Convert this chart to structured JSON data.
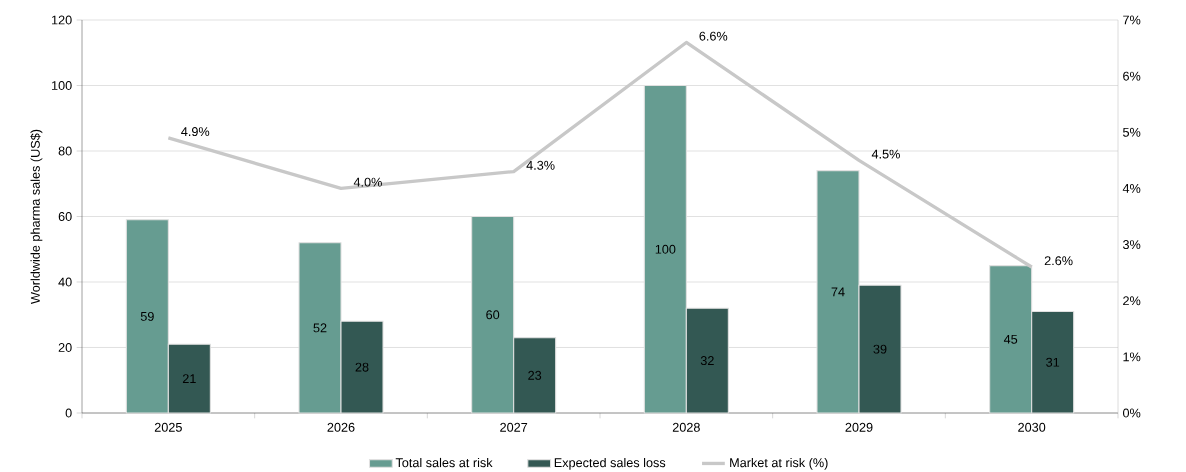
{
  "chart_data": {
    "type": "bar",
    "categories": [
      "2025",
      "2026",
      "2027",
      "2028",
      "2029",
      "2030"
    ],
    "ylabel": "Worldwide pharma sales (US$)",
    "ylim": [
      0,
      120
    ],
    "yticks": [
      0,
      20,
      40,
      60,
      80,
      100,
      120
    ],
    "y2lim": [
      0,
      7
    ],
    "y2ticks": [
      {
        "value": 0,
        "label": "0%"
      },
      {
        "value": 1,
        "label": "1%"
      },
      {
        "value": 2,
        "label": "2%"
      },
      {
        "value": 3,
        "label": "3%"
      },
      {
        "value": 4,
        "label": "4%"
      },
      {
        "value": 5,
        "label": "5%"
      },
      {
        "value": 6,
        "label": "6%"
      },
      {
        "value": 7,
        "label": "7%"
      }
    ],
    "grid": "y",
    "legend": "bottom",
    "series": [
      {
        "name": "Total sales at risk",
        "type": "bar",
        "color": "#669c91",
        "values": [
          59,
          52,
          60,
          100,
          74,
          45
        ],
        "value_labels": [
          "59",
          "52",
          "60",
          "100",
          "74",
          "45"
        ]
      },
      {
        "name": "Expected sales loss",
        "type": "bar",
        "color": "#335853",
        "values": [
          21,
          28,
          23,
          32,
          39,
          31
        ],
        "value_labels": [
          "21",
          "28",
          "23",
          "32",
          "39",
          "31"
        ]
      },
      {
        "name": "Market at risk (%)",
        "type": "line",
        "axis": "y2",
        "color": "#c8c8c8",
        "values": [
          4.9,
          4.0,
          4.3,
          6.6,
          4.5,
          2.6
        ],
        "value_labels": [
          "4.9%",
          "4.0%",
          "4.3%",
          "6.6%",
          "4.5%",
          "2.6%"
        ]
      }
    ]
  }
}
